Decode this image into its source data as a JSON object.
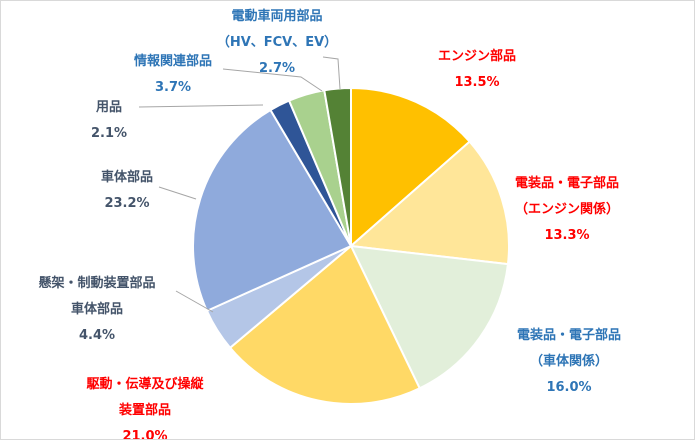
{
  "chart_data": {
    "type": "pie",
    "start_angle_deg": 0,
    "direction": "clockwise",
    "legend": "none",
    "slices": [
      {
        "lines": [
          "エンジン部品",
          "13.5%"
        ],
        "label": "エンジン部品",
        "value": 13.5,
        "color": "#ffc000",
        "label_color": "#ff0000"
      },
      {
        "lines": [
          "電装品・電子部品",
          "（エンジン関係）",
          "13.3%"
        ],
        "label": "電装品・電子部品（エンジン関係）",
        "value": 13.3,
        "color": "#ffe699",
        "label_color": "#ff0000"
      },
      {
        "lines": [
          "電装品・電子部品",
          "（車体関係）",
          "16.0%"
        ],
        "label": "電装品・電子部品（車体関係）",
        "value": 16.0,
        "color": "#e2efda",
        "label_color": "#2e75b6"
      },
      {
        "lines": [
          "駆動・伝導及び操縦",
          "装置部品",
          "21.0%"
        ],
        "label": "駆動・伝導及び操縦装置部品",
        "value": 21.0,
        "color": "#ffd966",
        "label_color": "#ff0000"
      },
      {
        "lines": [
          "懸架・制動装置部品",
          "車体部品",
          "4.4%"
        ],
        "label": "懸架・制動装置部品 車体部品",
        "value": 4.4,
        "color": "#b4c6e7",
        "label_color": "#44546a"
      },
      {
        "lines": [
          "車体部品",
          "23.2%"
        ],
        "label": "車体部品",
        "value": 23.2,
        "color": "#8faadc",
        "label_color": "#44546a"
      },
      {
        "lines": [
          "用品",
          "2.1%"
        ],
        "label": "用品",
        "value": 2.1,
        "color": "#2f5597",
        "label_color": "#44546a"
      },
      {
        "lines": [
          "情報関連部品",
          "3.7%"
        ],
        "label": "情報関連部品",
        "value": 3.7,
        "color": "#a9d18e",
        "label_color": "#2e75b6"
      },
      {
        "lines": [
          "電動車両用部品",
          "（HV、FCV、EV）",
          "2.7%"
        ],
        "label": "電動車両用部品（HV、FCV、EV）",
        "value": 2.7,
        "color": "#548235",
        "label_color": "#2e75b6"
      }
    ]
  }
}
